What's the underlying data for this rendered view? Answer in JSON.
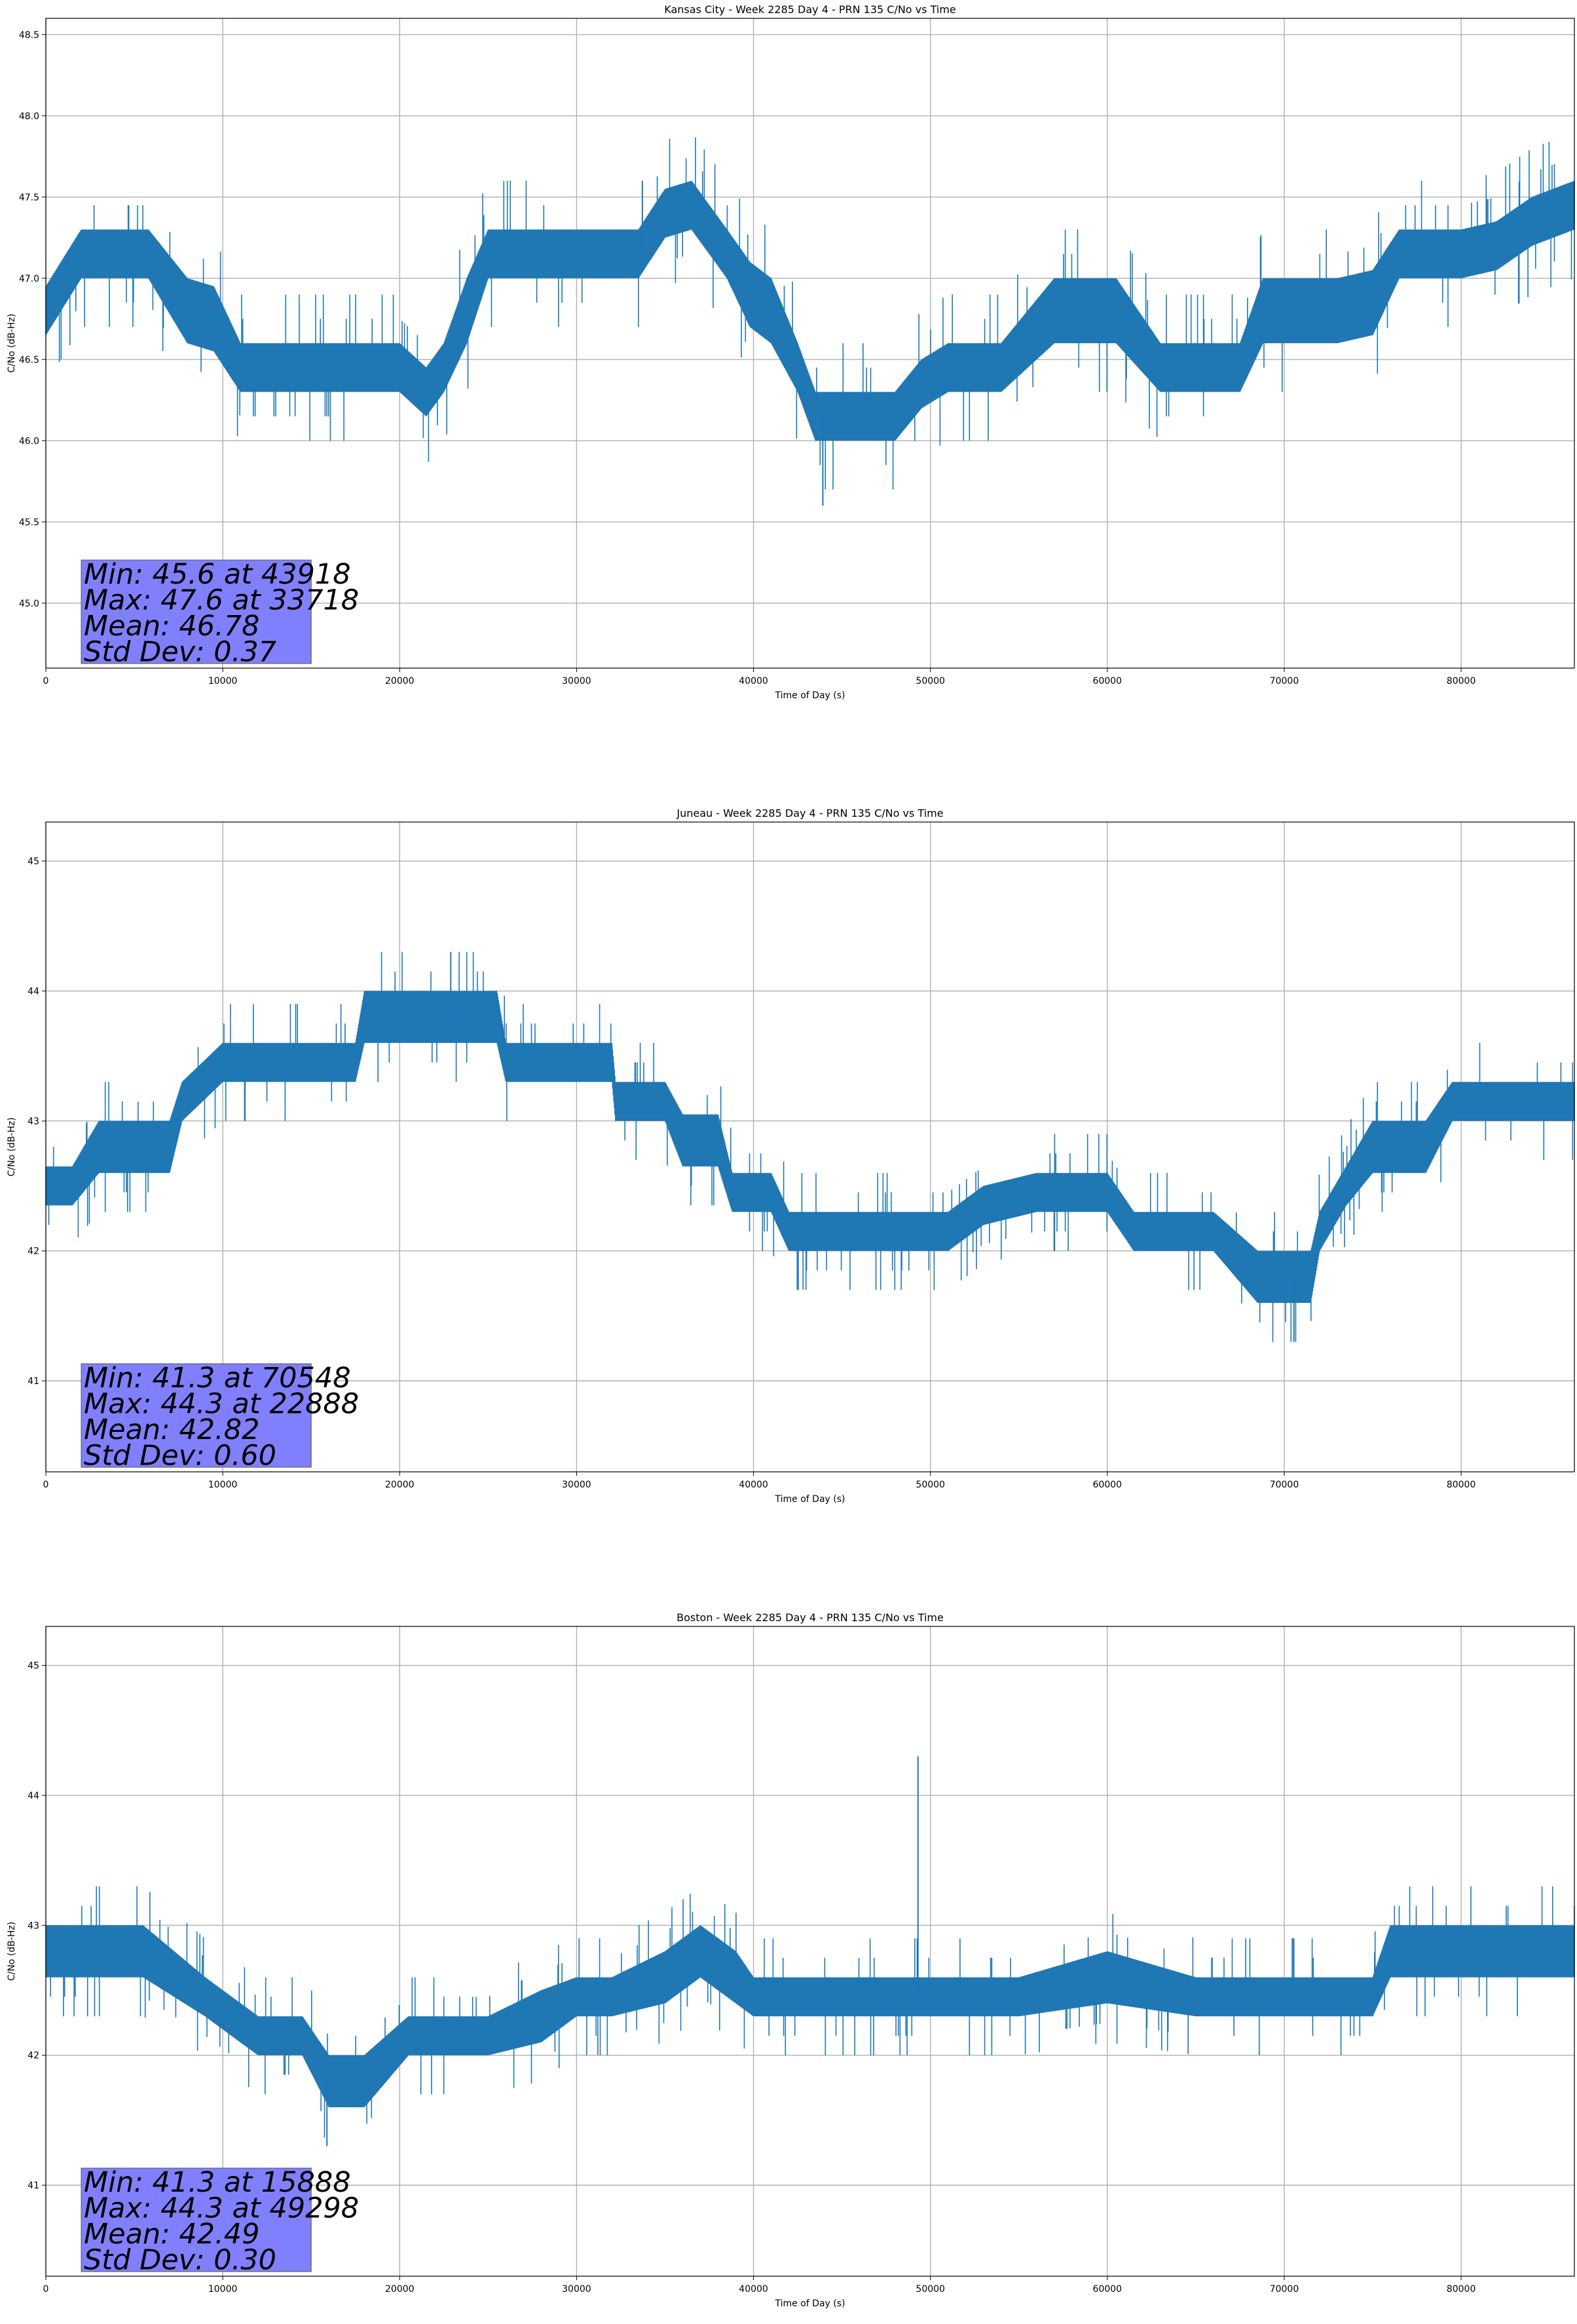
{
  "chart_data": [
    {
      "type": "line",
      "title": "Kansas City - Week 2285 Day 4 - PRN 135 C/No vs Time",
      "xlabel": "Time of Day (s)",
      "ylabel": "C/No (dB-Hz)",
      "xlim": [
        0,
        86400
      ],
      "ylim": [
        44.6,
        48.6
      ],
      "xticks": [
        0,
        10000,
        20000,
        30000,
        40000,
        50000,
        60000,
        70000,
        80000
      ],
      "yticks": [
        45.0,
        45.5,
        46.0,
        46.5,
        47.0,
        47.5,
        48.0,
        48.5
      ],
      "ytick_labels": [
        "45.0",
        "45.5",
        "46.0",
        "46.5",
        "47.0",
        "47.5",
        "48.0",
        "48.5"
      ],
      "grid": true,
      "color": "#1f77b4",
      "stats": [
        "Min: 45.6 at 43918",
        "Max: 47.6 at 33718",
        "Mean: 46.78",
        "Std Dev: 0.37"
      ],
      "series": [
        {
          "x": [
            0,
            2000,
            5800,
            8000,
            9500,
            11000,
            13000,
            15000,
            17500,
            20000,
            21500,
            22500,
            23800,
            25000,
            27000,
            29000,
            31000,
            33500,
            35000,
            36500,
            38500,
            39800,
            41000,
            42500,
            43500,
            45000,
            46500,
            48000,
            49500,
            51000,
            54000,
            57000,
            60500,
            63000,
            65000,
            67500,
            68800,
            71000,
            73000,
            75000,
            76500,
            78000,
            80000,
            82000,
            84000,
            86400
          ],
          "y": [
            46.8,
            47.15,
            47.15,
            46.8,
            46.75,
            46.45,
            46.45,
            46.45,
            46.45,
            46.45,
            46.3,
            46.45,
            46.8,
            47.15,
            47.15,
            47.15,
            47.15,
            47.15,
            47.4,
            47.45,
            47.15,
            46.9,
            46.8,
            46.45,
            46.15,
            46.15,
            46.15,
            46.15,
            46.35,
            46.45,
            46.45,
            46.8,
            46.8,
            46.45,
            46.45,
            46.45,
            46.8,
            46.8,
            46.8,
            46.85,
            47.15,
            47.15,
            47.15,
            47.2,
            47.35,
            47.45
          ],
          "band": [
            0.15,
            0.15,
            0.15,
            0.2,
            0.2,
            0.15,
            0.15,
            0.15,
            0.15,
            0.15,
            0.15,
            0.15,
            0.2,
            0.15,
            0.15,
            0.15,
            0.15,
            0.15,
            0.15,
            0.15,
            0.15,
            0.2,
            0.2,
            0.15,
            0.15,
            0.15,
            0.15,
            0.15,
            0.15,
            0.15,
            0.15,
            0.2,
            0.2,
            0.15,
            0.15,
            0.15,
            0.2,
            0.2,
            0.2,
            0.2,
            0.15,
            0.15,
            0.15,
            0.15,
            0.15,
            0.15
          ]
        }
      ]
    },
    {
      "type": "line",
      "title": "Juneau - Week 2285 Day 4 - PRN 135 C/No vs Time",
      "xlabel": "Time of Day (s)",
      "ylabel": "C/No (dB-Hz)",
      "xlim": [
        0,
        86400
      ],
      "ylim": [
        40.3,
        45.3
      ],
      "xticks": [
        0,
        10000,
        20000,
        30000,
        40000,
        50000,
        60000,
        70000,
        80000
      ],
      "yticks": [
        41,
        42,
        43,
        44,
        45
      ],
      "ytick_labels": [
        "41",
        "42",
        "43",
        "44",
        "45"
      ],
      "grid": true,
      "color": "#1f77b4",
      "stats": [
        "Min: 41.3 at 70548",
        "Max: 44.3 at 22888",
        "Mean: 42.82",
        "Std Dev: 0.60"
      ],
      "series": [
        {
          "x": [
            0,
            1500,
            3000,
            7000,
            7700,
            10000,
            12000,
            15000,
            17500,
            18000,
            21000,
            23000,
            25500,
            26000,
            29000,
            30000,
            32000,
            32200,
            35000,
            36000,
            38000,
            38800,
            41000,
            42000,
            45000,
            48000,
            51000,
            53000,
            56000,
            58000,
            60000,
            61500,
            64000,
            66000,
            68500,
            70000,
            71500,
            72000,
            73500,
            75000,
            78000,
            79500,
            82000,
            86400
          ],
          "y": [
            42.5,
            42.5,
            42.8,
            42.8,
            43.15,
            43.45,
            43.45,
            43.45,
            43.45,
            43.8,
            43.8,
            43.8,
            43.8,
            43.45,
            43.45,
            43.45,
            43.45,
            43.15,
            43.15,
            42.85,
            42.85,
            42.45,
            42.45,
            42.15,
            42.15,
            42.15,
            42.15,
            42.35,
            42.45,
            42.45,
            42.45,
            42.15,
            42.15,
            42.15,
            41.8,
            41.8,
            41.8,
            42.15,
            42.5,
            42.8,
            42.8,
            43.15,
            43.15,
            43.15
          ],
          "band": [
            0.15,
            0.15,
            0.2,
            0.2,
            0.15,
            0.15,
            0.15,
            0.15,
            0.15,
            0.2,
            0.2,
            0.2,
            0.2,
            0.15,
            0.15,
            0.15,
            0.15,
            0.15,
            0.15,
            0.2,
            0.2,
            0.15,
            0.15,
            0.15,
            0.15,
            0.15,
            0.15,
            0.15,
            0.15,
            0.15,
            0.15,
            0.15,
            0.15,
            0.15,
            0.2,
            0.2,
            0.2,
            0.15,
            0.15,
            0.2,
            0.2,
            0.15,
            0.15,
            0.15
          ]
        }
      ]
    },
    {
      "type": "line",
      "title": "Boston - Week 2285 Day 4 - PRN 135 C/No vs Time",
      "xlabel": "Time of Day (s)",
      "ylabel": "C/No (dB-Hz)",
      "xlim": [
        0,
        86400
      ],
      "ylim": [
        40.3,
        45.3
      ],
      "xticks": [
        0,
        10000,
        20000,
        30000,
        40000,
        50000,
        60000,
        70000,
        80000
      ],
      "yticks": [
        41,
        42,
        43,
        44,
        45
      ],
      "ytick_labels": [
        "41",
        "42",
        "43",
        "44",
        "45"
      ],
      "grid": true,
      "color": "#1f77b4",
      "stats": [
        "Min: 41.3 at 15888",
        "Max: 44.3 at 49298",
        "Mean: 42.49",
        "Std Dev: 0.30"
      ],
      "series": [
        {
          "x": [
            0,
            5500,
            9000,
            12000,
            14500,
            16000,
            18000,
            20500,
            22000,
            25000,
            28000,
            30000,
            32000,
            35000,
            37000,
            39000,
            40000,
            45000,
            50000,
            55000,
            60000,
            65000,
            70000,
            75000,
            76000,
            80000,
            86400
          ],
          "y": [
            42.8,
            42.8,
            42.45,
            42.15,
            42.15,
            41.8,
            41.8,
            42.15,
            42.15,
            42.15,
            42.3,
            42.45,
            42.45,
            42.6,
            42.8,
            42.6,
            42.45,
            42.45,
            42.45,
            42.45,
            42.6,
            42.45,
            42.45,
            42.45,
            42.8,
            42.8,
            42.8
          ],
          "band": [
            0.2,
            0.2,
            0.15,
            0.15,
            0.15,
            0.2,
            0.2,
            0.15,
            0.15,
            0.15,
            0.2,
            0.15,
            0.15,
            0.2,
            0.2,
            0.2,
            0.15,
            0.15,
            0.15,
            0.15,
            0.2,
            0.15,
            0.15,
            0.15,
            0.2,
            0.2,
            0.2
          ]
        }
      ]
    }
  ]
}
